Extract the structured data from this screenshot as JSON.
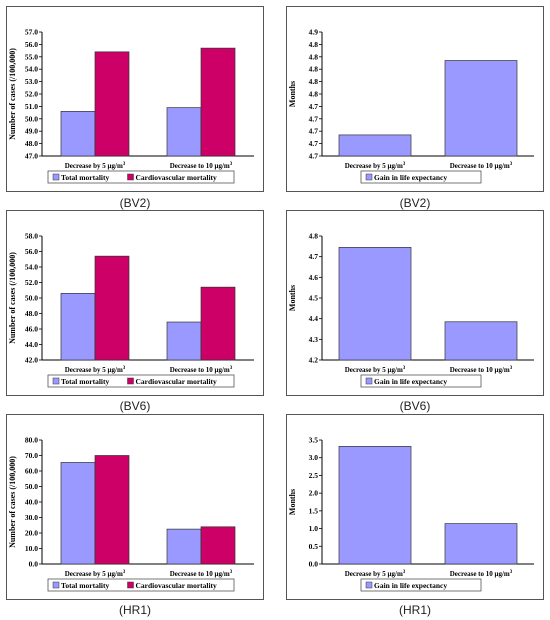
{
  "colors": {
    "total": "#9999ff",
    "cardio": "#cc0066",
    "gain": "#9999ff",
    "frame": "#555555"
  },
  "chart_data": [
    {
      "id": "bv2-cases",
      "type": "bar",
      "title": "",
      "ylabel": "Number of cases (/100,000)",
      "categories": [
        "Decrease by 5 μg/m³",
        "Decrease to 10 μg/m³"
      ],
      "ylim": [
        47.0,
        57.0
      ],
      "yticks": [
        "47.0",
        "48.0",
        "49.0",
        "50.0",
        "51.0",
        "52.0",
        "53.0",
        "54.0",
        "55.0",
        "56.0",
        "57.0"
      ],
      "series": [
        {
          "name": "Total mortality",
          "values": [
            50.6,
            50.9
          ]
        },
        {
          "name": "Cardiovascular mortality",
          "values": [
            55.4,
            55.7
          ]
        }
      ],
      "caption": "(BV2)"
    },
    {
      "id": "bv2-gain",
      "type": "bar",
      "title": "",
      "ylabel": "Months",
      "categories": [
        "Decrease by 5 μg/m³",
        "Decrease to 10 μg/m³"
      ],
      "ylim": [
        4.7,
        4.9
      ],
      "yticks": [
        "4.7",
        "4.7",
        "4.7",
        "4.7",
        "4.7",
        "4.8",
        "4.8",
        "4.8",
        "4.8",
        "4.8",
        "4.9"
      ],
      "series": [
        {
          "name": "Gain in life expectancy",
          "values": [
            4.734,
            4.854
          ]
        }
      ],
      "caption": "(BV2)"
    },
    {
      "id": "bv6-cases",
      "type": "bar",
      "title": "",
      "ylabel": "Number of cases (/100,000)",
      "categories": [
        "Decrease by 5  μg/m³",
        "Decrease to 10  μg/m³"
      ],
      "ylim": [
        42.0,
        58.0
      ],
      "yticks": [
        "42.0",
        "44.0",
        "46.0",
        "48.0",
        "50.0",
        "52.0",
        "54.0",
        "56.0",
        "58.0"
      ],
      "series": [
        {
          "name": "Total mortality",
          "values": [
            50.6,
            46.9
          ]
        },
        {
          "name": "Cardiovascular mortality",
          "values": [
            55.4,
            51.4
          ]
        }
      ],
      "caption": "(BV6)"
    },
    {
      "id": "bv6-gain",
      "type": "bar",
      "title": "",
      "ylabel": "Months",
      "categories": [
        "Decrease by 5  μg/m³",
        "Decrease to 10  μg/m³"
      ],
      "ylim": [
        4.2,
        4.8
      ],
      "yticks": [
        "4.2",
        "4.3",
        "4.4",
        "4.5",
        "4.6",
        "4.7",
        "4.8"
      ],
      "series": [
        {
          "name": "Gain in life expectancy",
          "values": [
            4.745,
            4.385
          ]
        }
      ],
      "caption": "(BV6)"
    },
    {
      "id": "hr1-cases",
      "type": "bar",
      "title": "",
      "ylabel": "Number of cases (/100,000)",
      "categories": [
        "Decrease by 5  μg/m³",
        "Decrease to 10  μg/m³"
      ],
      "ylim": [
        0,
        80
      ],
      "yticks": [
        "0.0",
        "10.0",
        "20.0",
        "30.0",
        "40.0",
        "50.0",
        "60.0",
        "70.0",
        "80.0"
      ],
      "series": [
        {
          "name": "Total mortality",
          "values": [
            65.5,
            22.5
          ]
        },
        {
          "name": "Cardiovascular mortality",
          "values": [
            70.0,
            24.0
          ]
        }
      ],
      "caption": "(HR1)"
    },
    {
      "id": "hr1-gain",
      "type": "bar",
      "title": "",
      "ylabel": "Months",
      "categories": [
        "Decrease by 5 μg/m³",
        "Decrease to 10 μg/m³"
      ],
      "ylim": [
        0,
        3.5
      ],
      "yticks": [
        "0.0",
        "0.5",
        "1.0",
        "1.5",
        "2.0",
        "2.5",
        "3.0",
        "3.5"
      ],
      "series": [
        {
          "name": "Gain in life expectancy",
          "values": [
            3.32,
            1.14
          ]
        }
      ],
      "caption": "(HR1)"
    }
  ]
}
